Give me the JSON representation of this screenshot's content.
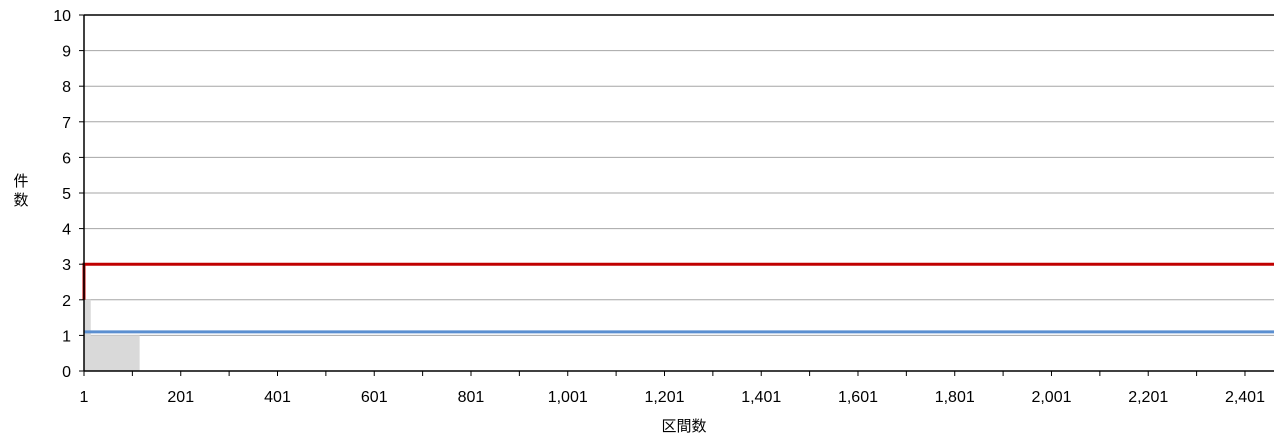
{
  "chart_data": {
    "type": "line",
    "xlabel": "区間数",
    "ylabel": "件数",
    "xlim": [
      1,
      2461
    ],
    "ylim": [
      0,
      10
    ],
    "x_ticks": [
      {
        "value": 1,
        "label": "1"
      },
      {
        "value": 201,
        "label": "201"
      },
      {
        "value": 401,
        "label": "401"
      },
      {
        "value": 601,
        "label": "601"
      },
      {
        "value": 801,
        "label": "801"
      },
      {
        "value": 1001,
        "label": "1,001"
      },
      {
        "value": 1201,
        "label": "1,201"
      },
      {
        "value": 1401,
        "label": "1,401"
      },
      {
        "value": 1601,
        "label": "1,601"
      },
      {
        "value": 1801,
        "label": "1,801"
      },
      {
        "value": 2001,
        "label": "2,001"
      },
      {
        "value": 2201,
        "label": "2,201"
      },
      {
        "value": 2401,
        "label": "2,401"
      }
    ],
    "y_ticks": [
      0,
      1,
      2,
      3,
      4,
      5,
      6,
      7,
      8,
      9,
      10
    ],
    "grid": true,
    "legend": "none",
    "series": [
      {
        "type": "area",
        "color": "#d9d9d9",
        "x": [
          1,
          15,
          15,
          116,
          116
        ],
        "y": [
          2,
          2,
          1,
          1,
          0
        ]
      },
      {
        "type": "line",
        "color": "#c00000",
        "x": [
          1,
          1,
          2461
        ],
        "y": [
          2,
          3,
          3
        ]
      },
      {
        "type": "line",
        "color": "#5b8fd0",
        "x": [
          1,
          2461
        ],
        "y": [
          1.1,
          1.1
        ]
      }
    ]
  }
}
